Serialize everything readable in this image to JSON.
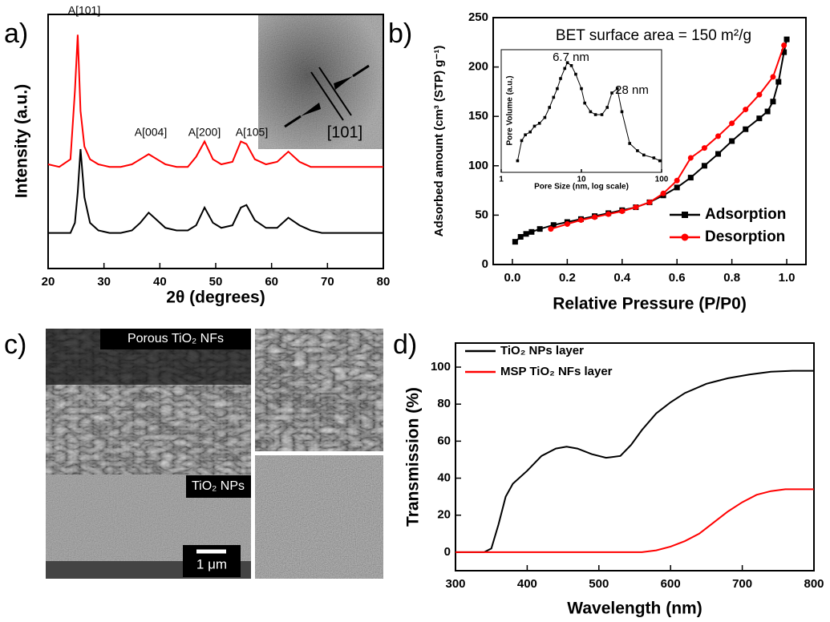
{
  "chart_data": [
    {
      "type": "line",
      "panel_label": "a)",
      "xlabel": "2θ (degrees)",
      "ylabel": "Intensity (a.u.)",
      "xlim": [
        20,
        80
      ],
      "xticks": [
        20,
        30,
        40,
        50,
        60,
        70,
        80
      ],
      "ylim": [
        0,
        100
      ],
      "annotations": [
        "A[101]",
        "A[004]",
        "A[200]",
        "A[105]"
      ],
      "inset_label": "[101]",
      "series": [
        {
          "color": "#ff0000",
          "x": [
            20,
            22,
            24,
            24.8,
            25.3,
            25.8,
            26.5,
            27.5,
            29,
            31,
            33,
            35,
            36.5,
            38,
            39.5,
            41,
            43,
            45,
            46.5,
            48,
            49.5,
            51,
            53,
            54.5,
            55.5,
            57,
            59,
            61,
            63,
            65,
            67,
            69,
            71,
            73,
            75,
            77,
            80
          ],
          "values": [
            41,
            40,
            43,
            70,
            92,
            62,
            48,
            43,
            41,
            40,
            40,
            41,
            43,
            45,
            43,
            41,
            40,
            40,
            44,
            50,
            43,
            41,
            42,
            50,
            49,
            43,
            41,
            42,
            46,
            42,
            40,
            40,
            40,
            40,
            40,
            40,
            40
          ]
        },
        {
          "color": "#000000",
          "x": [
            20,
            22,
            24,
            24.8,
            25.3,
            25.8,
            26.5,
            27.5,
            29,
            31,
            33,
            35,
            36.5,
            38,
            39.5,
            41,
            43,
            45,
            46.5,
            48,
            49.5,
            51,
            53,
            54.5,
            55.5,
            57,
            59,
            61,
            63,
            65,
            67,
            69,
            71,
            73,
            75,
            77,
            80
          ],
          "values": [
            14,
            14,
            14,
            18,
            30,
            47,
            28,
            18,
            15,
            14,
            14,
            15,
            18,
            22,
            19,
            16,
            15,
            15,
            17,
            24,
            18,
            16,
            17,
            24,
            25,
            19,
            16,
            16,
            20,
            17,
            15,
            14,
            14,
            14,
            14,
            14,
            14
          ]
        }
      ]
    },
    {
      "type": "line",
      "panel_label": "b)",
      "title": "BET surface area = 150 m²/g",
      "xlabel": "Relative Pressure (P/P0)",
      "ylabel": "Adsorbed amount (cm³ (STP) g⁻¹)",
      "xlim": [
        -0.07,
        1.07
      ],
      "xticks": [
        {
          "value": 0,
          "label": "0.0"
        },
        0.2,
        0.4,
        0.6,
        0.8,
        {
          "value": 1,
          "label": "1.0"
        }
      ],
      "ylim": [
        0,
        250
      ],
      "yticks": [
        0,
        50,
        100,
        150,
        200,
        250
      ],
      "legend": "lower right",
      "series": [
        {
          "name": "Adsorption",
          "color": "#000000",
          "marker": "square",
          "x": [
            0.01,
            0.03,
            0.05,
            0.07,
            0.1,
            0.15,
            0.2,
            0.25,
            0.3,
            0.35,
            0.4,
            0.45,
            0.5,
            0.55,
            0.6,
            0.65,
            0.7,
            0.75,
            0.8,
            0.85,
            0.9,
            0.93,
            0.95,
            0.97,
            0.99,
            1.0
          ],
          "values": [
            23,
            28,
            31,
            33,
            36,
            40,
            43,
            46,
            49,
            52,
            55,
            58,
            63,
            70,
            78,
            88,
            100,
            112,
            125,
            137,
            148,
            155,
            165,
            185,
            215,
            228
          ]
        },
        {
          "name": "Desorption",
          "color": "#ff0000",
          "marker": "circle",
          "x": [
            0.14,
            0.2,
            0.25,
            0.3,
            0.35,
            0.4,
            0.45,
            0.5,
            0.55,
            0.6,
            0.65,
            0.7,
            0.75,
            0.8,
            0.85,
            0.9,
            0.95,
            0.99
          ],
          "values": [
            36,
            41,
            45,
            48,
            51,
            54,
            58,
            63,
            72,
            85,
            108,
            118,
            130,
            143,
            157,
            172,
            190,
            222
          ]
        }
      ],
      "inset": {
        "type": "line",
        "xlog": true,
        "xlabel": "Pore Size (nm, log scale)",
        "ylabel": "Pore Volume (a.u.)",
        "xlim": [
          1,
          100
        ],
        "xticks": [
          1,
          10,
          100
        ],
        "ylim": [
          10,
          95
        ],
        "annotations": [
          "6.7 nm",
          "28 nm"
        ],
        "series": [
          {
            "color": "#000000",
            "marker": "square",
            "x": [
              1.6,
              1.8,
              2,
              2.3,
              2.6,
              3,
              3.5,
              4,
              4.5,
              5,
              5.5,
              6.2,
              6.7,
              7.5,
              8.5,
              10,
              11,
              13,
              15,
              18,
              21,
              24,
              28,
              32,
              40,
              50,
              60,
              80,
              95
            ],
            "values": [
              18,
              32,
              36,
              38,
              42,
              44,
              48,
              55,
              62,
              68,
              75,
              82,
              86,
              84,
              78,
              68,
              58,
              52,
              50,
              50,
              55,
              65,
              68,
              52,
              30,
              25,
              22,
              20,
              18
            ]
          }
        ]
      }
    },
    {
      "type": "image",
      "panel_label": "c)",
      "labels": [
        "Porous TiO₂ NFs",
        "TiO₂ NPs",
        "1 μm"
      ]
    },
    {
      "type": "line",
      "panel_label": "d)",
      "xlabel": "Wavelength (nm)",
      "ylabel": "Transmission (%)",
      "xlim": [
        300,
        800
      ],
      "xticks": [
        300,
        400,
        500,
        600,
        700,
        800
      ],
      "ylim": [
        -10,
        113
      ],
      "yticks": [
        0,
        20,
        40,
        60,
        80,
        100
      ],
      "legend": "upper left",
      "series": [
        {
          "name": "TiO₂ NPs layer",
          "color": "#000000",
          "x": [
            300,
            340,
            350,
            360,
            370,
            380,
            400,
            420,
            440,
            455,
            470,
            490,
            510,
            530,
            545,
            560,
            580,
            600,
            620,
            650,
            680,
            710,
            740,
            770,
            800
          ],
          "values": [
            0,
            0,
            2,
            15,
            30,
            37,
            44,
            52,
            56,
            57,
            56,
            53,
            51,
            52,
            58,
            66,
            75,
            81,
            86,
            91,
            94,
            96,
            97.5,
            98,
            98
          ]
        },
        {
          "name": "MSP TiO₂ NFs layer",
          "color": "#ff0000",
          "x": [
            300,
            400,
            500,
            560,
            580,
            600,
            620,
            640,
            660,
            680,
            700,
            720,
            740,
            760,
            800
          ],
          "values": [
            0,
            0,
            0,
            0,
            1,
            3,
            6,
            10,
            16,
            22,
            27,
            31,
            33,
            34,
            34
          ]
        }
      ]
    }
  ]
}
